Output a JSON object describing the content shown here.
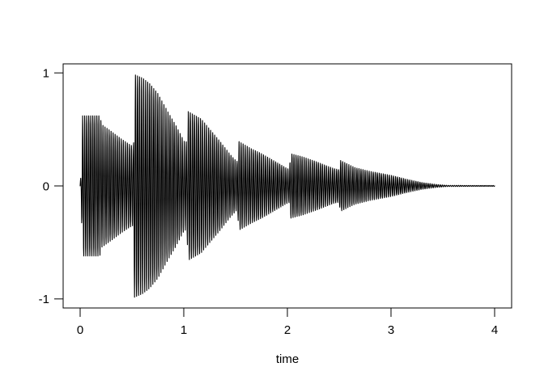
{
  "chart_data": {
    "type": "line",
    "title": "",
    "xlabel": "time",
    "ylabel": "",
    "x_ticks": [
      0,
      1,
      2,
      3,
      4
    ],
    "y_ticks": [
      -1,
      0,
      1
    ],
    "xlim": [
      -0.164,
      4.164
    ],
    "ylim": [
      -1.08,
      1.08
    ],
    "grid": false,
    "legend": false,
    "background_color": "#ffffff",
    "axis_color": "#000000",
    "series_color": "#000000",
    "waveform": {
      "kind": "amplitude-modulated oscillation with symmetric decaying-bounce envelope",
      "duration": 4,
      "oscillation_frequency_per_time_unit": 51,
      "bounce_peak_times": [
        0.02,
        0.53,
        1.04,
        1.53,
        2.03,
        2.51
      ],
      "bounce_peak_amplitudes": [
        0.63,
        1.0,
        0.67,
        0.4,
        0.29,
        0.23
      ],
      "envelope_breakpoints": [
        [
          0.0,
          0.04
        ],
        [
          0.01,
          0.1
        ],
        [
          0.022,
          0.63
        ],
        [
          0.19,
          0.63
        ],
        [
          0.21,
          0.55
        ],
        [
          0.3,
          0.49
        ],
        [
          0.4,
          0.42
        ],
        [
          0.48,
          0.37
        ],
        [
          0.515,
          0.355
        ],
        [
          0.525,
          1.0
        ],
        [
          0.6,
          0.97
        ],
        [
          0.67,
          0.92
        ],
        [
          0.75,
          0.83
        ],
        [
          0.85,
          0.66
        ],
        [
          0.92,
          0.55
        ],
        [
          1.005,
          0.4
        ],
        [
          1.03,
          0.395
        ],
        [
          1.04,
          0.67
        ],
        [
          1.17,
          0.6
        ],
        [
          1.25,
          0.51
        ],
        [
          1.35,
          0.4
        ],
        [
          1.45,
          0.28
        ],
        [
          1.505,
          0.225
        ],
        [
          1.52,
          0.22
        ],
        [
          1.53,
          0.4
        ],
        [
          1.65,
          0.335
        ],
        [
          1.75,
          0.29
        ],
        [
          1.88,
          0.22
        ],
        [
          2.0,
          0.155
        ],
        [
          2.02,
          0.15
        ],
        [
          2.03,
          0.29
        ],
        [
          2.15,
          0.26
        ],
        [
          2.3,
          0.21
        ],
        [
          2.45,
          0.155
        ],
        [
          2.5,
          0.145
        ],
        [
          2.51,
          0.23
        ],
        [
          2.65,
          0.165
        ],
        [
          2.8,
          0.13
        ],
        [
          3.0,
          0.095
        ],
        [
          3.15,
          0.06
        ],
        [
          3.3,
          0.03
        ],
        [
          3.45,
          0.012
        ],
        [
          3.55,
          0.005
        ],
        [
          4.0,
          0.004
        ]
      ]
    }
  }
}
